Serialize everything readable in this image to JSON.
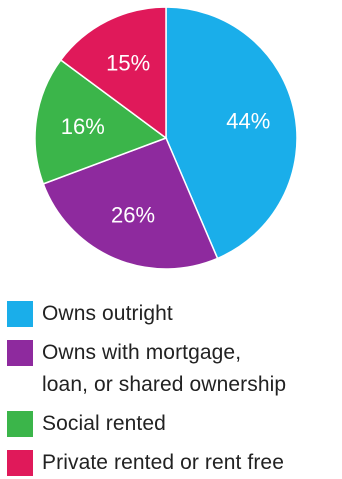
{
  "chart_data": {
    "type": "pie",
    "title": "",
    "slices": [
      {
        "name": "Owns outright",
        "value": 44,
        "label": "44%",
        "color": "#1aaeea"
      },
      {
        "name": "Owns with mortgage, loan, or shared ownership",
        "value": 26,
        "label": "26%",
        "color": "#8e2a9e"
      },
      {
        "name": "Social rented",
        "value": 16,
        "label": "16%",
        "color": "#3bb54a"
      },
      {
        "name": "Private rented or rent free",
        "value": 15,
        "label": "15%",
        "color": "#e0195a"
      }
    ],
    "start_angle_deg": 0,
    "direction": "clockwise",
    "legend_position": "bottom-left"
  },
  "legend": {
    "items": [
      {
        "label": "Owns outright",
        "color": "#1aaeea"
      },
      {
        "label": "Owns with mortgage,\nloan, or shared ownership",
        "color": "#8e2a9e"
      },
      {
        "label": "Social rented",
        "color": "#3bb54a"
      },
      {
        "label": "Private rented or rent free",
        "color": "#e0195a"
      }
    ]
  }
}
